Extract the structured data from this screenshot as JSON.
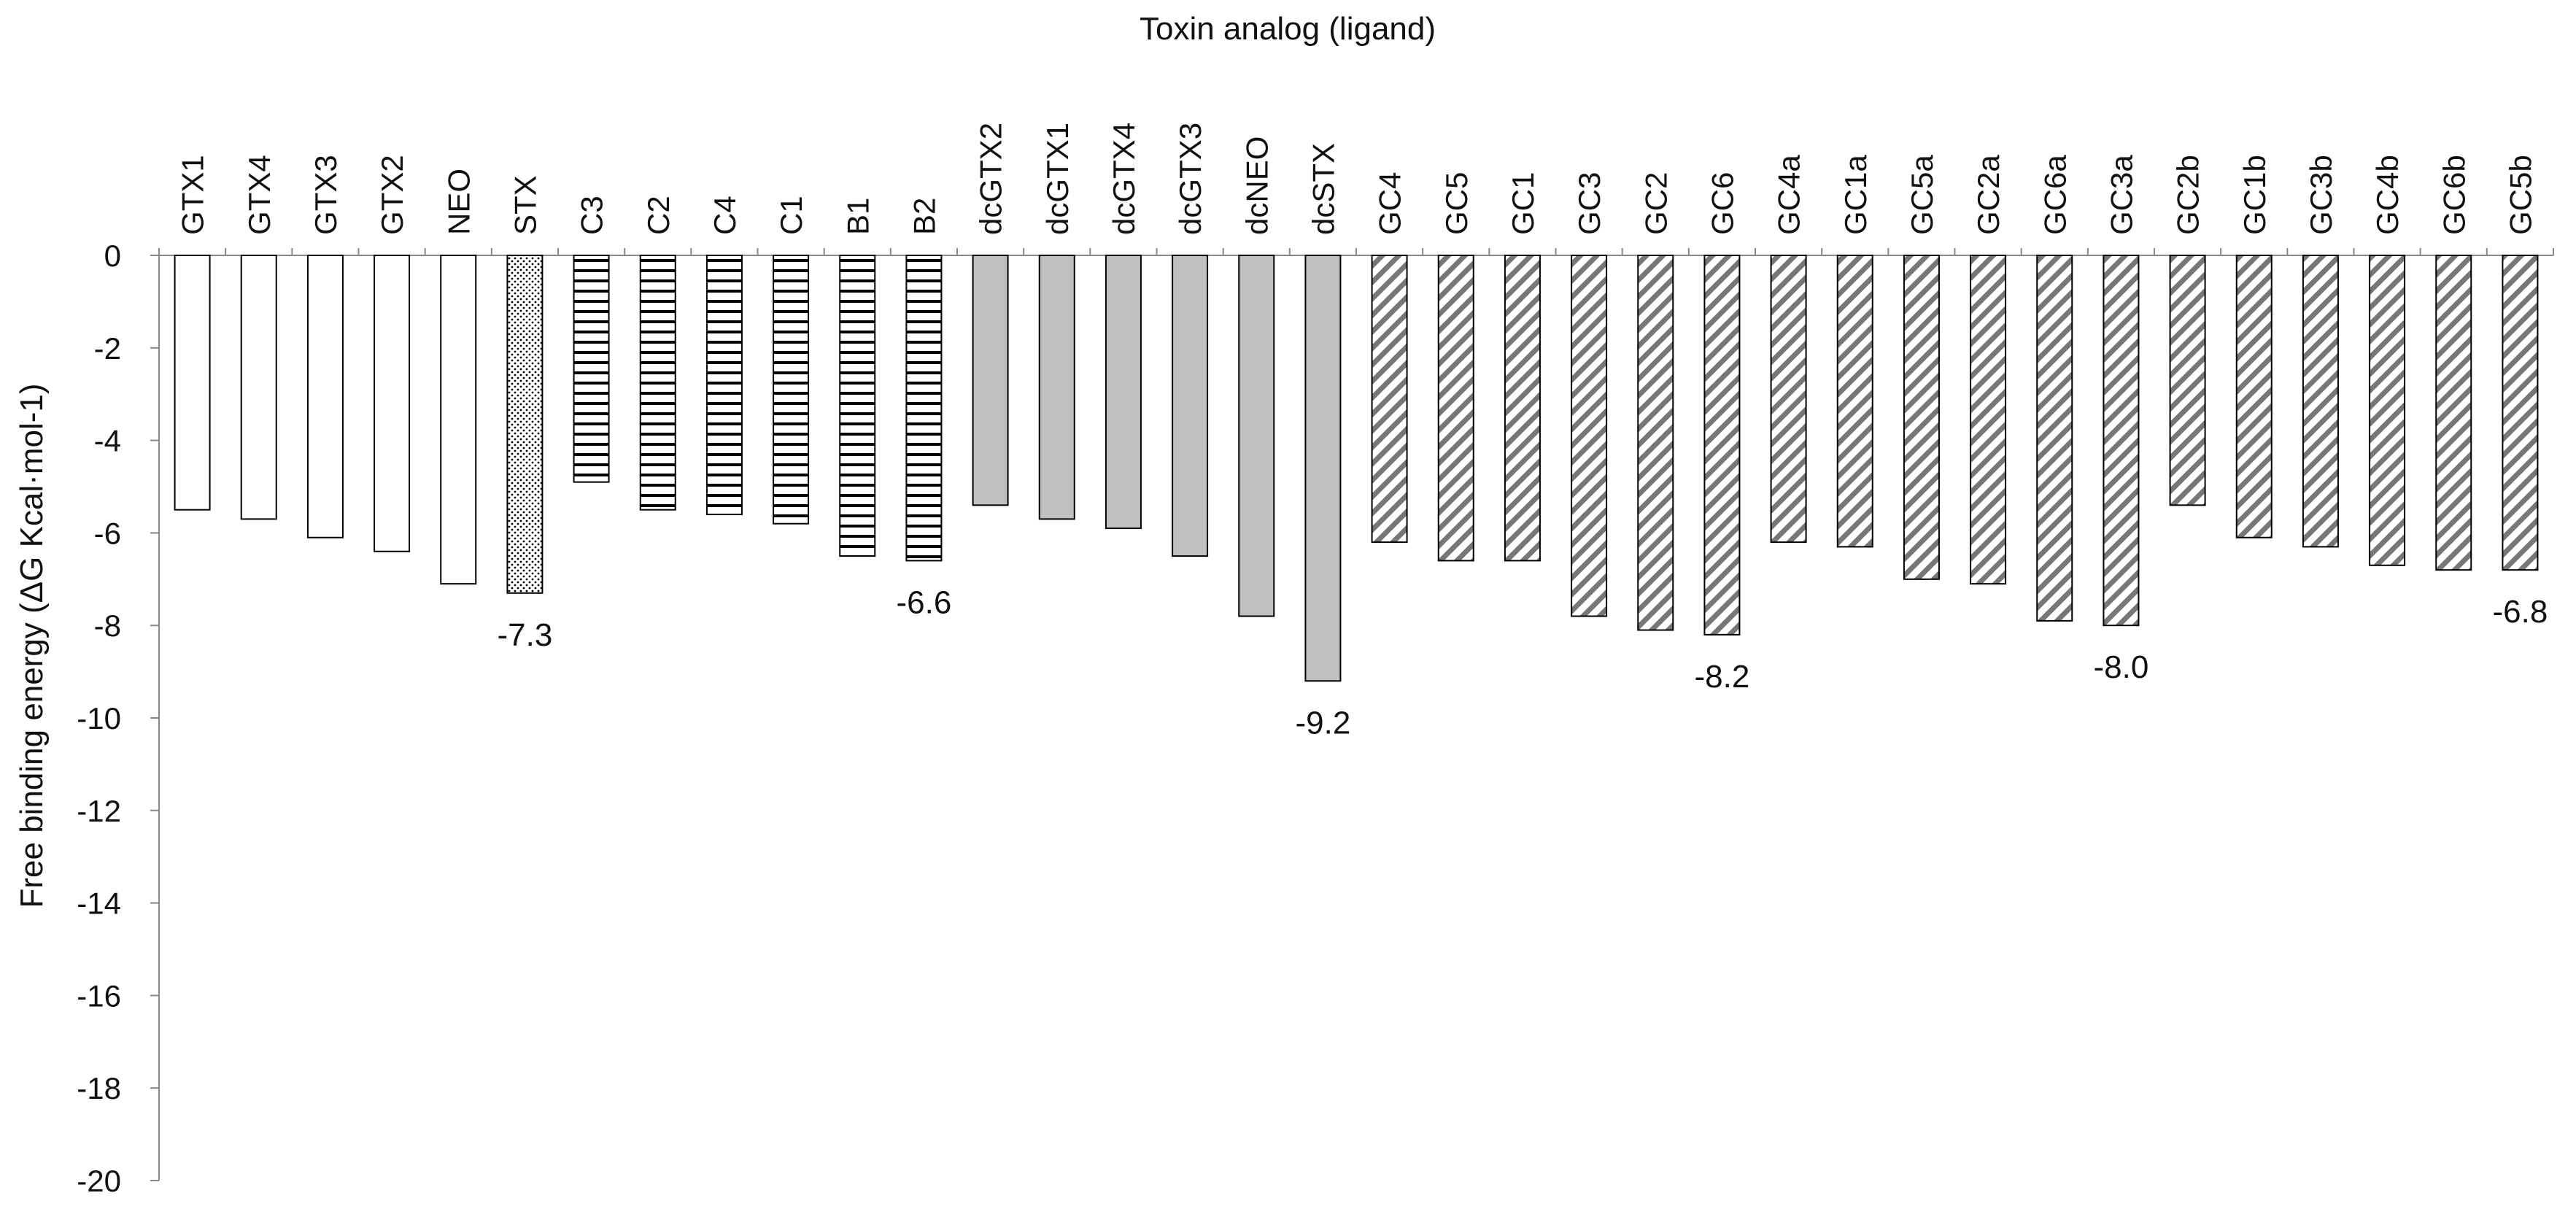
{
  "chart_data": {
    "type": "bar",
    "title": "Toxin analog (ligand)",
    "xlabel": "Toxin analog (ligand)",
    "ylabel": "Free binding energy (ΔG Kcal·mol-1)",
    "ylim": [
      -20,
      0
    ],
    "yticks": [
      0,
      -2,
      -4,
      -6,
      -8,
      -10,
      -12,
      -14,
      -16,
      -18,
      -20
    ],
    "x_axis_position": "top",
    "grid": false,
    "legend": "none",
    "categories": [
      "GTX1",
      "GTX4",
      "GTX3",
      "GTX2",
      "NEO",
      "STX",
      "C3",
      "C2",
      "C4",
      "C1",
      "B1",
      "B2",
      "dcGTX2",
      "dcGTX1",
      "dcGTX4",
      "dcGTX3",
      "dcNEO",
      "dcSTX",
      "GC4",
      "GC5",
      "GC1",
      "GC3",
      "GC2",
      "GC6",
      "GC4a",
      "GC1a",
      "GC5a",
      "GC2a",
      "GC6a",
      "GC3a",
      "GC2b",
      "GC1b",
      "GC3b",
      "GC4b",
      "GC6b",
      "GC5b"
    ],
    "values": [
      -5.5,
      -5.7,
      -6.1,
      -6.4,
      -7.1,
      -7.3,
      -4.9,
      -5.5,
      -5.6,
      -5.8,
      -6.5,
      -6.6,
      -5.4,
      -5.7,
      -5.9,
      -6.5,
      -7.8,
      -9.2,
      -6.2,
      -6.6,
      -6.6,
      -7.8,
      -8.1,
      -8.2,
      -6.2,
      -6.3,
      -7.0,
      -7.1,
      -7.9,
      -8.0,
      -5.4,
      -6.1,
      -6.3,
      -6.7,
      -6.8,
      -6.8
    ],
    "patterns": [
      "white",
      "white",
      "white",
      "white",
      "white",
      "dots",
      "hlines",
      "hlines",
      "hlines",
      "hlines",
      "hlines",
      "hlines",
      "gray",
      "gray",
      "gray",
      "gray",
      "gray",
      "gray",
      "diag",
      "diag",
      "diag",
      "diag",
      "diag",
      "diag",
      "diag",
      "diag",
      "diag",
      "diag",
      "diag",
      "diag",
      "diag",
      "diag",
      "diag",
      "diag",
      "diag",
      "diag"
    ],
    "annotations": [
      {
        "category": "STX",
        "text": "-7.3"
      },
      {
        "category": "B2",
        "text": "-6.6"
      },
      {
        "category": "dcSTX",
        "text": "-9.2"
      },
      {
        "category": "GC6",
        "text": "-8.2"
      },
      {
        "category": "GC3a",
        "text": "-8.0"
      },
      {
        "category": "GC5b",
        "text": "-6.8"
      }
    ],
    "colors": {
      "gray_fill": "#c0c0c0",
      "outline": "#000000",
      "axis": "#888888",
      "hatch": "#777777"
    }
  }
}
